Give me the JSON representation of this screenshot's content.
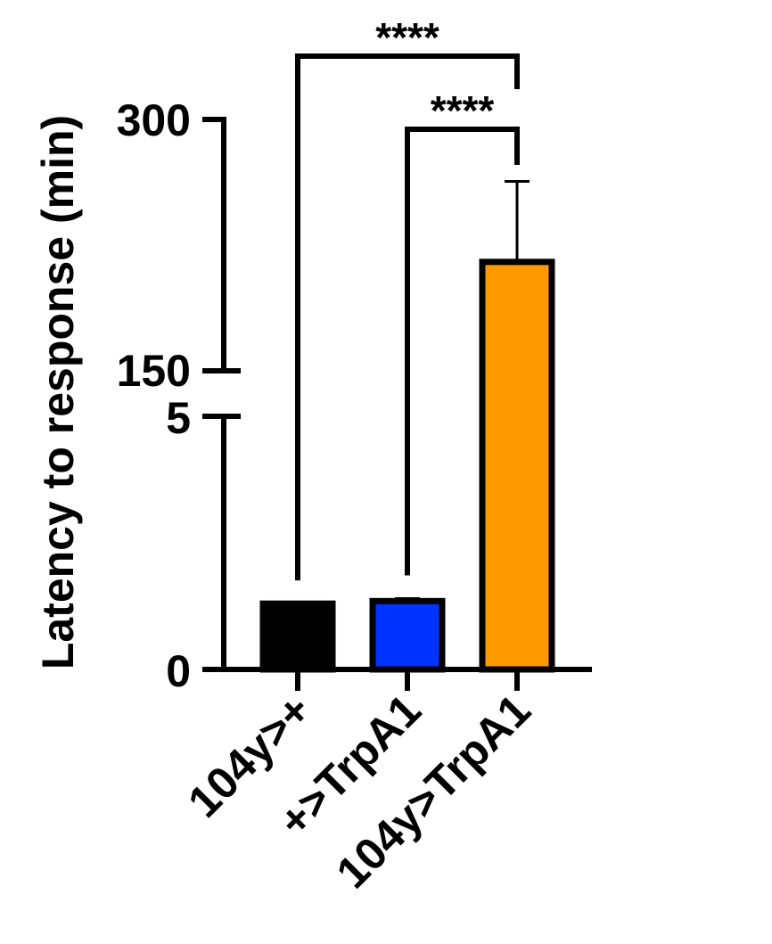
{
  "chart_data": {
    "type": "bar",
    "ylabel": "Latency to response (min)",
    "categories": [
      "104y>+",
      "+>TrpA1",
      "104y>TrpA1"
    ],
    "values": [
      1.3,
      1.35,
      215
    ],
    "errors": [
      0,
      0.05,
      48
    ],
    "colors": [
      "#000000",
      "#0033ff",
      "#ff9900"
    ],
    "y_axis_break": {
      "lower_range": [
        0,
        5
      ],
      "upper_range": [
        150,
        300
      ]
    },
    "y_ticks_lower": [
      "0",
      "5"
    ],
    "y_ticks_upper": [
      "150",
      "300"
    ],
    "significance": [
      {
        "from": "104y>+",
        "to": "104y>TrpA1",
        "label": "****"
      },
      {
        "from": "+>TrpA1",
        "to": "104y>TrpA1",
        "label": "****"
      }
    ]
  }
}
